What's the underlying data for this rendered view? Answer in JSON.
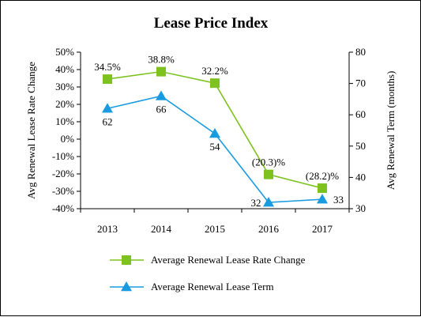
{
  "chart_data": {
    "type": "line",
    "title": "Lease Price Index",
    "categories": [
      "2013",
      "2014",
      "2015",
      "2016",
      "2017"
    ],
    "y_left": {
      "label": "Avg Renewal Lease Rate Change",
      "min": -40,
      "max": 50,
      "step": 10,
      "tick_labels": [
        "-40%",
        "-30%",
        "-20%",
        "-10%",
        "0%",
        "10%",
        "20%",
        "30%",
        "40%",
        "50%"
      ]
    },
    "y_right": {
      "label": "Avg Renewal Term (months)",
      "min": 30,
      "max": 80,
      "step": 10,
      "tick_labels": [
        "30",
        "40",
        "50",
        "60",
        "70",
        "80"
      ]
    },
    "series": [
      {
        "name": "Average Renewal Lease Rate Change",
        "axis": "left",
        "marker": "square",
        "color": "#7dc21e",
        "values": [
          34.5,
          38.8,
          32.2,
          -20.3,
          -28.2
        ],
        "labels": [
          "34.5%",
          "38.8%",
          "32.2%",
          "(20.3)%",
          "(28.2)%"
        ]
      },
      {
        "name": "Average Renewal Lease Term",
        "axis": "right",
        "marker": "triangle",
        "color": "#1a9be0",
        "values": [
          62,
          66,
          54,
          32,
          33
        ],
        "labels": [
          "62",
          "66",
          "54",
          "32",
          "33"
        ]
      }
    ],
    "legend": {
      "position": "bottom"
    },
    "grid": false
  }
}
